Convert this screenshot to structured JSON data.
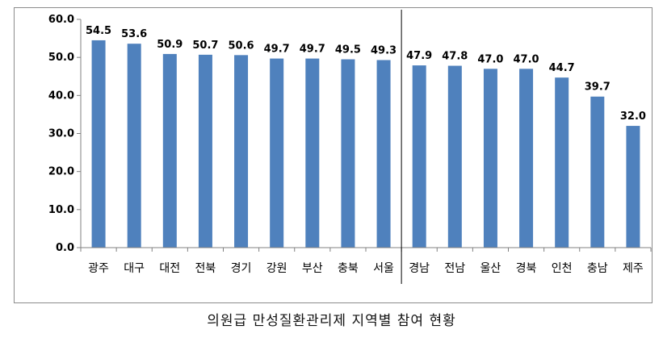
{
  "caption": "의원급 만성질환관리제 지역별 참여 현황",
  "chart_data": {
    "type": "bar",
    "categories": [
      "광주",
      "대구",
      "대전",
      "전북",
      "경기",
      "강원",
      "부산",
      "충북",
      "서울",
      "경남",
      "전남",
      "울산",
      "경북",
      "인천",
      "충남",
      "제주"
    ],
    "values": [
      54.5,
      53.6,
      50.9,
      50.7,
      50.6,
      49.7,
      49.7,
      49.5,
      49.3,
      47.9,
      47.8,
      47.0,
      47.0,
      44.7,
      39.7,
      32.0
    ],
    "value_labels": [
      "54.5",
      "53.6",
      "50.9",
      "50.7",
      "50.6",
      "49.7",
      "49.7",
      "49.5",
      "49.3",
      "47.9",
      "47.8",
      "47.0",
      "47.0",
      "44.7",
      "39.7",
      "32.0"
    ],
    "ylim": [
      0,
      60
    ],
    "yticks": [
      "0.0",
      "10.0",
      "20.0",
      "30.0",
      "40.0",
      "50.0",
      "60.0"
    ],
    "bar_color": "#4f81bd",
    "divider_after_index": 8,
    "grid": false,
    "legend": "none"
  }
}
